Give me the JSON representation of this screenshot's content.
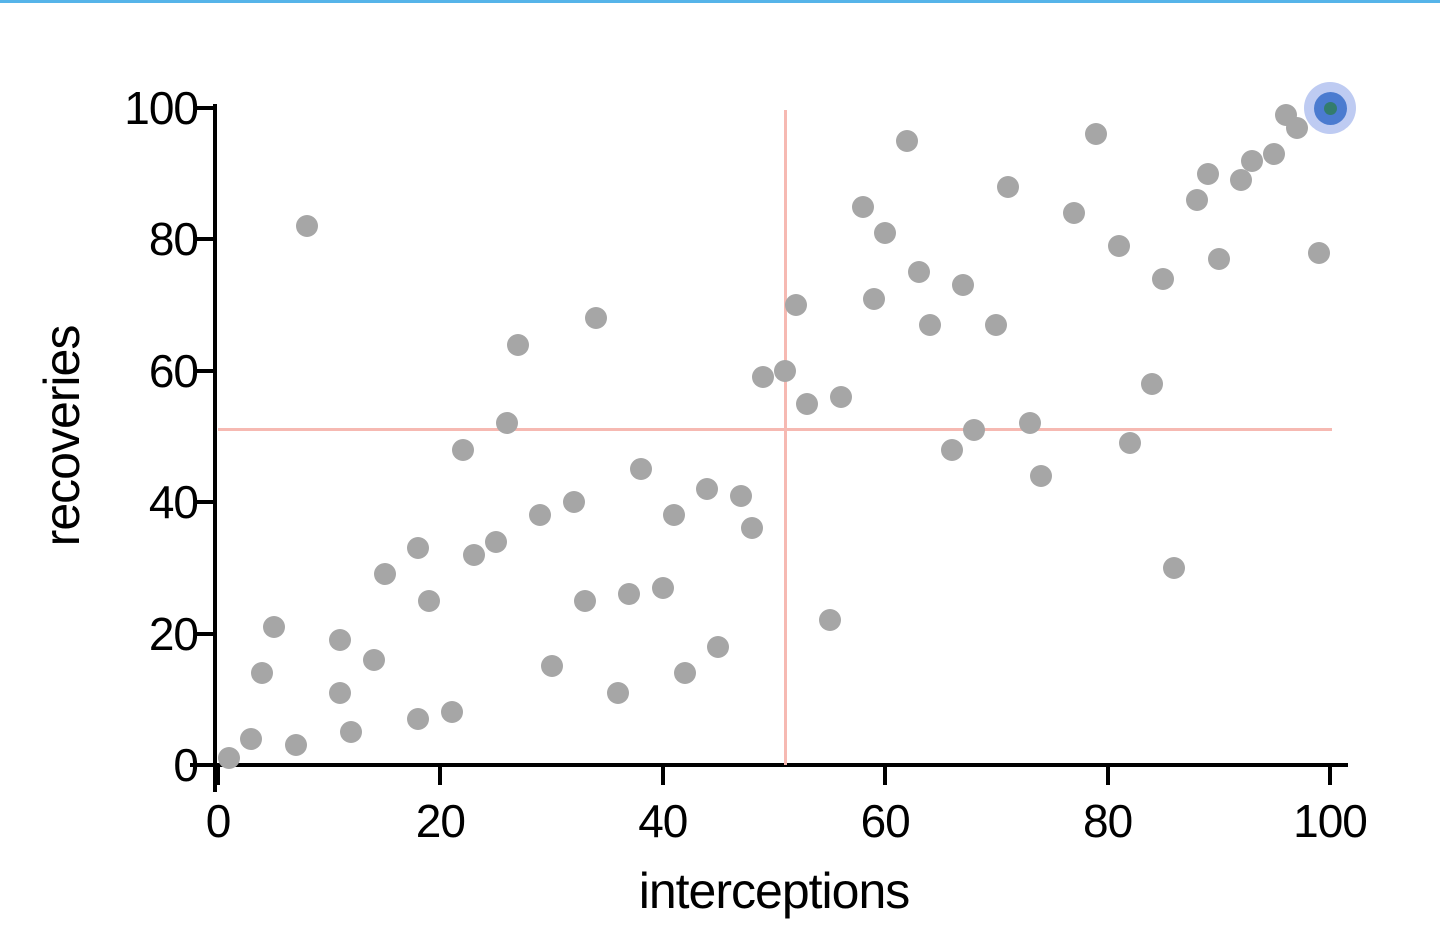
{
  "window": {
    "top_border_color": "#56b4e9",
    "background_color": "#ffffff"
  },
  "chart_data": {
    "type": "scatter",
    "title": "",
    "xlabel": "interceptions",
    "ylabel": "recoveries",
    "xlim": [
      0,
      100
    ],
    "ylim": [
      0,
      100
    ],
    "x_ticks": [
      0,
      20,
      40,
      60,
      80,
      100
    ],
    "y_ticks": [
      0,
      20,
      40,
      60,
      80,
      100
    ],
    "grid": false,
    "legend": false,
    "points": [
      [
        1,
        1
      ],
      [
        3,
        4
      ],
      [
        7,
        3
      ],
      [
        12,
        5
      ],
      [
        4,
        14
      ],
      [
        5,
        21
      ],
      [
        11,
        11
      ],
      [
        11,
        19
      ],
      [
        14,
        16
      ],
      [
        15,
        29
      ],
      [
        18,
        7
      ],
      [
        21,
        8
      ],
      [
        18,
        33
      ],
      [
        19,
        25
      ],
      [
        23,
        32
      ],
      [
        25,
        34
      ],
      [
        22,
        48
      ],
      [
        29,
        38
      ],
      [
        30,
        15
      ],
      [
        32,
        40
      ],
      [
        33,
        25
      ],
      [
        36,
        11
      ],
      [
        37,
        26
      ],
      [
        38,
        45
      ],
      [
        40,
        27
      ],
      [
        41,
        38
      ],
      [
        42,
        14
      ],
      [
        44,
        42
      ],
      [
        45,
        18
      ],
      [
        47,
        41
      ],
      [
        48,
        36
      ],
      [
        26,
        52
      ],
      [
        8,
        82
      ],
      [
        27,
        64
      ],
      [
        34,
        68
      ],
      [
        55,
        22
      ],
      [
        66,
        48
      ],
      [
        68,
        51
      ],
      [
        73,
        52
      ],
      [
        74,
        44
      ],
      [
        82,
        49
      ],
      [
        86,
        30
      ],
      [
        49,
        59
      ],
      [
        51,
        60
      ],
      [
        52,
        70
      ],
      [
        53,
        55
      ],
      [
        56,
        56
      ],
      [
        58,
        85
      ],
      [
        59,
        71
      ],
      [
        60,
        81
      ],
      [
        62,
        95
      ],
      [
        63,
        75
      ],
      [
        64,
        67
      ],
      [
        67,
        73
      ],
      [
        70,
        67
      ],
      [
        71,
        88
      ],
      [
        77,
        84
      ],
      [
        79,
        96
      ],
      [
        81,
        79
      ],
      [
        84,
        58
      ],
      [
        85,
        74
      ],
      [
        88,
        86
      ],
      [
        89,
        90
      ],
      [
        90,
        77
      ],
      [
        92,
        89
      ],
      [
        93,
        92
      ],
      [
        95,
        93
      ],
      [
        96,
        99
      ],
      [
        97,
        97
      ],
      [
        99,
        78
      ]
    ],
    "highlighted_point": [
      100,
      100
    ],
    "crosshair": {
      "x": 51,
      "y": 51
    },
    "colors": {
      "point": "#a6a6a6",
      "crosshair_line": "#f6b9b2",
      "axis": "#000000",
      "highlight_halo": "rgba(100,130,225,0.42)",
      "highlight_ring": "#4b7bd0",
      "highlight_core": "#337c6d"
    }
  }
}
